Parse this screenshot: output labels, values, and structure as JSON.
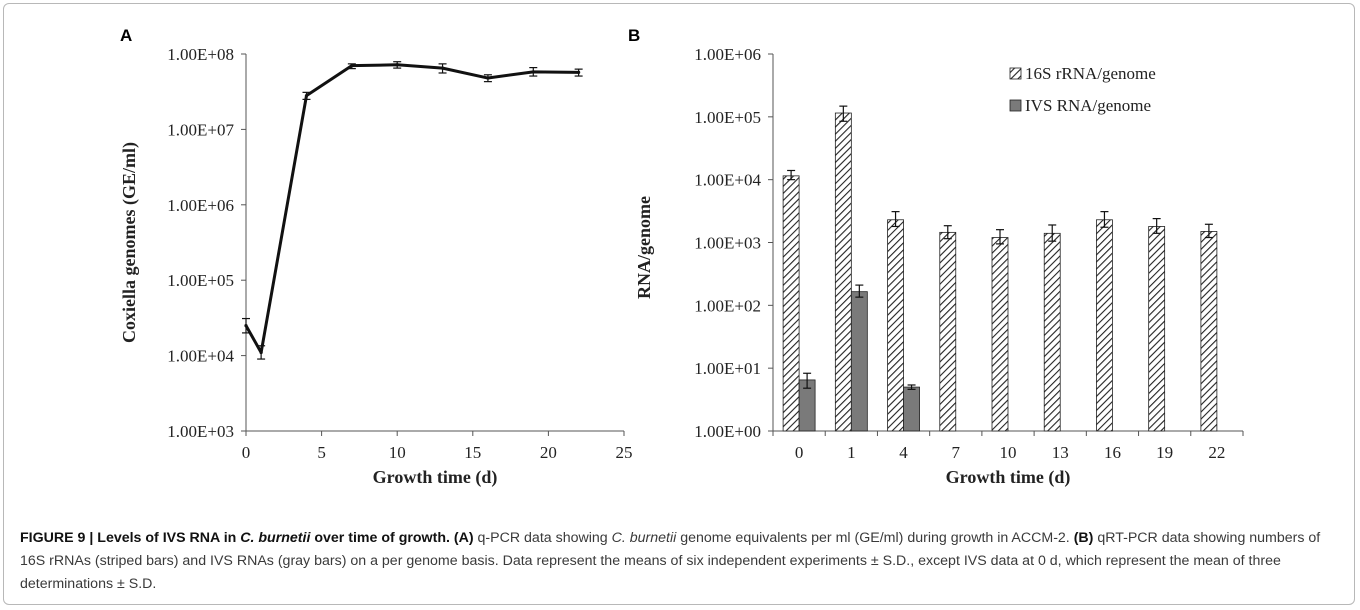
{
  "chart_data": [
    {
      "panel": "A",
      "type": "line",
      "xlabel": "Growth time (d)",
      "ylabel": "Coxiella genomes (GE/ml)",
      "xlim": [
        0,
        25
      ],
      "x_ticks": [
        0,
        5,
        10,
        15,
        20,
        25
      ],
      "ylim": [
        1000,
        100000000
      ],
      "y_scale": "log",
      "y_ticks": [
        "1.00E+03",
        "1.00E+04",
        "1.00E+05",
        "1.00E+06",
        "1.00E+07",
        "1.00E+08"
      ],
      "grid": false,
      "series": [
        {
          "x": [
            0,
            1,
            4,
            7,
            10,
            13,
            16,
            19,
            22
          ],
          "y": [
            25000,
            11000,
            28000000,
            70000000,
            72000000,
            65000000,
            48000000,
            58000000,
            57000000
          ],
          "err_low": [
            20000,
            9000,
            25000000,
            64000000,
            65000000,
            56000000,
            43000000,
            51000000,
            51000000
          ],
          "err_high": [
            31000,
            13500,
            31000000,
            74000000,
            79000000,
            74000000,
            53000000,
            66000000,
            63000000
          ]
        }
      ]
    },
    {
      "panel": "B",
      "type": "bar",
      "xlabel": "Growth time (d)",
      "ylabel": "RNA/genome",
      "categories": [
        "0",
        "1",
        "4",
        "7",
        "10",
        "13",
        "16",
        "19",
        "22"
      ],
      "ylim": [
        1,
        1000000
      ],
      "y_scale": "log",
      "y_ticks": [
        "1.00E+00",
        "1.00E+01",
        "1.00E+02",
        "1.00E+03",
        "1.00E+04",
        "1.00E+05",
        "1.00E+06"
      ],
      "grid": false,
      "legend_position": "top-right",
      "series": [
        {
          "name": "16S rRNA/genome",
          "pattern": "striped",
          "values": [
            11500,
            115000,
            2300,
            1450,
            1200,
            1400,
            2300,
            1800,
            1500
          ],
          "err_low": [
            10000,
            85000,
            1800,
            1150,
            950,
            1050,
            1750,
            1400,
            1200
          ],
          "err_high": [
            14000,
            148000,
            3100,
            1850,
            1600,
            1900,
            3100,
            2400,
            1950
          ]
        },
        {
          "name": "IVS RNA/genome",
          "pattern": "gray",
          "values": [
            6.5,
            165,
            5,
            null,
            null,
            null,
            null,
            null,
            null
          ],
          "err_low": [
            4.8,
            135,
            4.6,
            null,
            null,
            null,
            null,
            null,
            null
          ],
          "err_high": [
            8.3,
            210,
            5.4,
            null,
            null,
            null,
            null,
            null,
            null
          ]
        }
      ]
    }
  ],
  "caption": {
    "label": "FIGURE 9 | Levels of IVS RNA in ",
    "label_italic": "C. burnetii",
    "label_end": " over time of growth.",
    "a_marker": "(A)",
    "a_text_1": " q-PCR data showing ",
    "a_italic": "C. burnetii",
    "a_text_2": " genome equivalents per ml (GE/ml) during growth in ACCM-2. ",
    "b_marker": "(B)",
    "b_text": " qRT-PCR data showing numbers of 16S rRNAs (striped bars) and IVS RNAs (gray bars) on a per genome basis. Data represent the means of six independent experiments ± S.D., except IVS data at 0 d, which represent the mean of three determinations ± S.D."
  },
  "colors": {
    "line": "#111111",
    "ivs_fill": "#7a7a7a",
    "stripe": "#222222",
    "axis": "#555555"
  }
}
